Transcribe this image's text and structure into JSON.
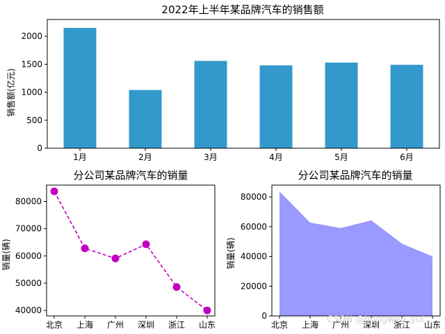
{
  "watermark": "CSDN @hongwen_yul",
  "chart_data": [
    {
      "type": "bar",
      "title": "2022年上半年某品牌汽车的销售额",
      "ylabel": "销售额(亿元)",
      "categories": [
        "1月",
        "2月",
        "3月",
        "4月",
        "5月",
        "6月"
      ],
      "values": [
        2150,
        1040,
        1560,
        1480,
        1530,
        1490
      ],
      "ylim": [
        0,
        2300
      ],
      "yticks": [
        0,
        500,
        1000,
        1500,
        2000
      ],
      "color": "#3399cc",
      "grid": false
    },
    {
      "type": "line",
      "title": "分公司某品牌汽车的销量",
      "ylabel": "销量(辆)",
      "categories": [
        "北京",
        "上海",
        "广州",
        "深圳",
        "浙江",
        "山东"
      ],
      "values": [
        83700,
        62800,
        59100,
        64300,
        48600,
        40000
      ],
      "ylim": [
        38000,
        86000
      ],
      "yticks": [
        40000,
        50000,
        60000,
        70000,
        80000
      ],
      "color": "#c000c0",
      "line_style": "dashed",
      "marker": "circle",
      "grid": false
    },
    {
      "type": "area",
      "title": "分公司某品牌汽车的销量",
      "ylabel": "销量(辆)",
      "categories": [
        "北京",
        "上海",
        "广州",
        "深圳",
        "浙江",
        "山东"
      ],
      "values": [
        83700,
        62800,
        59100,
        64300,
        48600,
        40000
      ],
      "ylim": [
        0,
        88000
      ],
      "yticks": [
        0,
        20000,
        40000,
        60000,
        80000
      ],
      "color": "#9999ff",
      "grid": false
    }
  ]
}
